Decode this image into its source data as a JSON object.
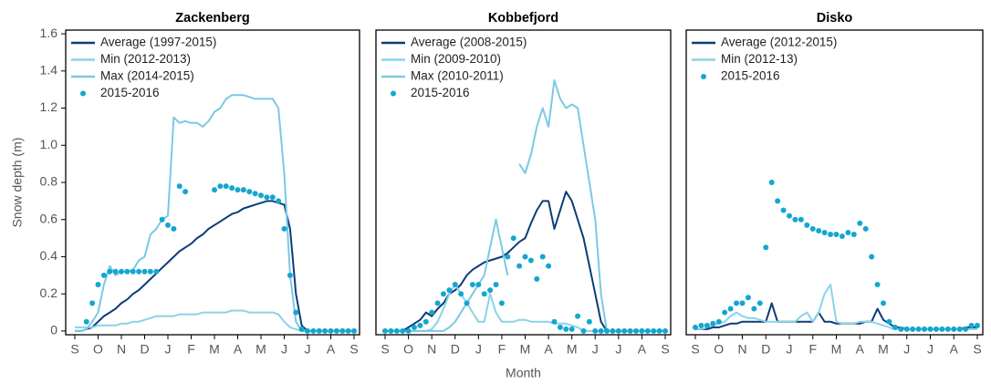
{
  "chart_data": [
    {
      "type": "line",
      "title": "Zackenberg",
      "ylabel": "Snow depth (m)",
      "x": [
        0,
        0.25,
        0.5,
        0.75,
        1,
        1.25,
        1.5,
        1.75,
        2,
        2.25,
        2.5,
        2.75,
        3,
        3.25,
        3.5,
        3.75,
        4,
        4.25,
        4.5,
        4.75,
        5,
        5.25,
        5.5,
        5.75,
        6,
        6.25,
        6.5,
        6.75,
        7,
        7.25,
        7.5,
        7.75,
        8,
        8.25,
        8.5,
        8.75,
        9,
        9.25,
        9.5,
        9.75,
        10,
        10.25,
        10.5,
        10.75,
        11,
        11.25,
        11.5,
        11.75,
        12
      ],
      "xlim": [
        0,
        12
      ],
      "xticks": [
        {
          "value": 0,
          "label": "S"
        },
        {
          "value": 1,
          "label": "O"
        },
        {
          "value": 2,
          "label": "N"
        },
        {
          "value": 3,
          "label": "D"
        },
        {
          "value": 4,
          "label": "J"
        },
        {
          "value": 5,
          "label": "F"
        },
        {
          "value": 6,
          "label": "M"
        },
        {
          "value": 7,
          "label": "A"
        },
        {
          "value": 8,
          "label": "M"
        },
        {
          "value": 9,
          "label": "J"
        },
        {
          "value": 10,
          "label": "J"
        },
        {
          "value": 11,
          "label": "A"
        },
        {
          "value": 12,
          "label": "S"
        }
      ],
      "ylim": [
        -0.02,
        1.62
      ],
      "yticks": [
        0,
        0.2,
        0.4,
        0.6,
        0.8,
        {
          "value": 1,
          "label": "1.0"
        },
        1.2,
        1.4,
        1.6
      ],
      "series": [
        {
          "name": "Average (1997-2015)",
          "color": "#0b3c78",
          "values": [
            0,
            0,
            0.01,
            0.02,
            0.05,
            0.08,
            0.1,
            0.12,
            0.15,
            0.17,
            0.2,
            0.22,
            0.25,
            0.28,
            0.31,
            0.34,
            0.37,
            0.4,
            0.43,
            0.45,
            0.47,
            0.5,
            0.52,
            0.55,
            0.57,
            0.59,
            0.61,
            0.63,
            0.64,
            0.66,
            0.67,
            0.68,
            0.69,
            0.7,
            0.7,
            0.69,
            0.68,
            0.55,
            0.2,
            0.03,
            0,
            0,
            0,
            0,
            0,
            0,
            0,
            0,
            0
          ]
        },
        {
          "name": "Min (2012-2013)",
          "color": "#8ad3e8",
          "values": [
            0.02,
            0.02,
            0.02,
            0.02,
            0.03,
            0.03,
            0.03,
            0.03,
            0.04,
            0.04,
            0.05,
            0.05,
            0.06,
            0.07,
            0.08,
            0.08,
            0.08,
            0.08,
            0.09,
            0.09,
            0.09,
            0.09,
            0.1,
            0.1,
            0.1,
            0.1,
            0.1,
            0.11,
            0.11,
            0.11,
            0.1,
            0.1,
            0.1,
            0.1,
            0.1,
            0.09,
            0.05,
            0.02,
            0.01,
            0,
            0,
            0,
            0,
            0,
            0,
            0,
            0,
            0,
            0
          ]
        },
        {
          "name": "Max (2014-2015)",
          "color": "#7cc8e4",
          "values": [
            0,
            0,
            0.01,
            0.05,
            0.1,
            0.25,
            0.35,
            0.3,
            0.32,
            0.32,
            0.33,
            0.38,
            0.4,
            0.52,
            0.55,
            0.6,
            0.62,
            1.15,
            1.12,
            1.13,
            1.12,
            1.12,
            1.1,
            1.13,
            1.18,
            1.2,
            1.25,
            1.27,
            1.27,
            1.27,
            1.26,
            1.25,
            1.25,
            1.25,
            1.25,
            1.2,
            0.85,
            0.3,
            0.05,
            0,
            0,
            0,
            0,
            0,
            0,
            0,
            0,
            0,
            0
          ]
        },
        {
          "name": "2015-2016",
          "color": "#14a6d0",
          "type": "scatter",
          "values": [
            null,
            null,
            0.05,
            0.15,
            0.25,
            0.3,
            0.32,
            0.32,
            0.32,
            0.32,
            0.32,
            0.32,
            0.32,
            0.32,
            0.32,
            0.6,
            0.57,
            0.55,
            0.78,
            0.75,
            null,
            null,
            null,
            null,
            0.76,
            0.78,
            0.78,
            0.77,
            0.76,
            0.76,
            0.75,
            0.74,
            0.73,
            0.72,
            0.72,
            0.7,
            0.55,
            0.3,
            0.1,
            0.01,
            0,
            0,
            0,
            0,
            0,
            0,
            0,
            0,
            0
          ]
        }
      ]
    },
    {
      "type": "line",
      "title": "Kobbefjord",
      "xlabel": "Month",
      "x": [
        0,
        0.25,
        0.5,
        0.75,
        1,
        1.25,
        1.5,
        1.75,
        2,
        2.25,
        2.5,
        2.75,
        3,
        3.25,
        3.5,
        3.75,
        4,
        4.25,
        4.5,
        4.75,
        5,
        5.25,
        5.5,
        5.75,
        6,
        6.25,
        6.5,
        6.75,
        7,
        7.25,
        7.5,
        7.75,
        8,
        8.25,
        8.5,
        8.75,
        9,
        9.25,
        9.5,
        9.75,
        10,
        10.25,
        10.5,
        10.75,
        11,
        11.25,
        11.5,
        11.75,
        12
      ],
      "xlim": [
        0,
        12
      ],
      "xticks": [
        {
          "value": 0,
          "label": "S"
        },
        {
          "value": 1,
          "label": "O"
        },
        {
          "value": 2,
          "label": "N"
        },
        {
          "value": 3,
          "label": "D"
        },
        {
          "value": 4,
          "label": "J"
        },
        {
          "value": 5,
          "label": "F"
        },
        {
          "value": 6,
          "label": "M"
        },
        {
          "value": 7,
          "label": "A"
        },
        {
          "value": 8,
          "label": "M"
        },
        {
          "value": 9,
          "label": "J"
        },
        {
          "value": 10,
          "label": "J"
        },
        {
          "value": 11,
          "label": "A"
        },
        {
          "value": 12,
          "label": "S"
        }
      ],
      "ylim": [
        -0.02,
        1.62
      ],
      "series": [
        {
          "name": "Average (2008-2015)",
          "color": "#0b3c78",
          "values": [
            0,
            0,
            0,
            0,
            0.02,
            0.04,
            0.06,
            0.1,
            0.08,
            0.12,
            0.15,
            0.2,
            0.22,
            0.25,
            0.3,
            0.33,
            0.35,
            0.37,
            0.38,
            0.39,
            0.4,
            0.42,
            0.45,
            0.48,
            0.5,
            0.58,
            0.65,
            0.7,
            0.7,
            0.55,
            0.65,
            0.75,
            0.7,
            0.6,
            0.5,
            0.35,
            0.2,
            0.05,
            0,
            0,
            0,
            0,
            0,
            0,
            0,
            0,
            0,
            0,
            0
          ]
        },
        {
          "name": "Min (2009-2010)",
          "color": "#8ad3e8",
          "values": [
            0,
            0,
            0,
            0,
            0,
            0,
            0,
            0,
            0.01,
            0.05,
            0.12,
            0.2,
            0.25,
            0.2,
            0.15,
            0.1,
            0.05,
            0.05,
            0.2,
            0.1,
            0.05,
            0.05,
            0.05,
            0.06,
            0.06,
            0.05,
            0.05,
            0.05,
            0.05,
            0.04,
            0.04,
            0.04,
            0.03,
            0.02,
            0,
            0,
            0,
            0,
            0,
            0,
            0,
            0,
            0,
            0,
            0,
            0,
            0,
            0,
            0
          ]
        },
        {
          "name": "Max (2010-2011)",
          "color": "#7cc8e4",
          "values": [
            0,
            0,
            0,
            0,
            0,
            0,
            0,
            0,
            0,
            0,
            0,
            0.02,
            0.05,
            0.1,
            0.15,
            0.2,
            0.25,
            0.3,
            0.45,
            0.6,
            0.45,
            0.3,
            null,
            0.9,
            0.85,
            0.95,
            1.1,
            1.2,
            1.1,
            1.35,
            1.25,
            1.2,
            1.22,
            1.2,
            1.0,
            0.8,
            0.6,
            0.2,
            0,
            0,
            0,
            0,
            0,
            0,
            0,
            0,
            0,
            0,
            0
          ]
        },
        {
          "name": "2015-2016",
          "color": "#14a6d0",
          "type": "scatter",
          "values": [
            0,
            0,
            0,
            0,
            0,
            0.02,
            0.03,
            0.05,
            0.1,
            0.15,
            0.2,
            0.22,
            0.25,
            0.2,
            0.15,
            0.25,
            0.25,
            0.2,
            0.22,
            0.25,
            0.15,
            0.4,
            0.5,
            0.35,
            0.4,
            0.38,
            0.28,
            0.4,
            0.35,
            0.05,
            0.02,
            0.01,
            0.01,
            0.08,
            0,
            0.05,
            0,
            0,
            0,
            0,
            0,
            0,
            0,
            0,
            0,
            0,
            0,
            0,
            0
          ]
        }
      ]
    },
    {
      "type": "line",
      "title": "Disko",
      "x": [
        0,
        0.25,
        0.5,
        0.75,
        1,
        1.25,
        1.5,
        1.75,
        2,
        2.25,
        2.5,
        2.75,
        3,
        3.25,
        3.5,
        3.75,
        4,
        4.25,
        4.5,
        4.75,
        5,
        5.25,
        5.5,
        5.75,
        6,
        6.25,
        6.5,
        6.75,
        7,
        7.25,
        7.5,
        7.75,
        8,
        8.25,
        8.5,
        8.75,
        9,
        9.25,
        9.5,
        9.75,
        10,
        10.25,
        10.5,
        10.75,
        11,
        11.25,
        11.5,
        11.75,
        12
      ],
      "xlim": [
        0,
        12
      ],
      "xticks": [
        {
          "value": 0,
          "label": "S"
        },
        {
          "value": 1,
          "label": "O"
        },
        {
          "value": 2,
          "label": "N"
        },
        {
          "value": 3,
          "label": "D"
        },
        {
          "value": 4,
          "label": "J"
        },
        {
          "value": 5,
          "label": "F"
        },
        {
          "value": 6,
          "label": "M"
        },
        {
          "value": 7,
          "label": "A"
        },
        {
          "value": 8,
          "label": "M"
        },
        {
          "value": 9,
          "label": "J"
        },
        {
          "value": 10,
          "label": "J"
        },
        {
          "value": 11,
          "label": "A"
        },
        {
          "value": 12,
          "label": "S"
        }
      ],
      "ylim": [
        -0.02,
        1.62
      ],
      "series": [
        {
          "name": "Average (2012-2015)",
          "color": "#0b3c78",
          "values": [
            0.01,
            0.01,
            0.01,
            0.02,
            0.02,
            0.03,
            0.04,
            0.04,
            0.05,
            0.05,
            0.05,
            0.05,
            0.05,
            0.15,
            0.05,
            0.05,
            0.05,
            0.05,
            0.05,
            0.05,
            0.05,
            0.1,
            0.05,
            0.05,
            0.04,
            0.04,
            0.04,
            0.04,
            0.04,
            0.05,
            0.05,
            0.12,
            0.06,
            0.04,
            0.02,
            0.02,
            0.01,
            0.01,
            0.01,
            0.01,
            0.01,
            0.01,
            0.01,
            0.01,
            0.01,
            0.01,
            0.02,
            0.02,
            0.02
          ]
        },
        {
          "name": "Min (2012-13)",
          "color": "#8ad3e8",
          "values": [
            0.01,
            0.01,
            0.02,
            0.03,
            0.04,
            0.05,
            0.08,
            0.1,
            0.08,
            0.07,
            0.07,
            0.06,
            0.05,
            0.05,
            0.05,
            0.05,
            0.05,
            0.05,
            0.08,
            0.1,
            0.05,
            0.1,
            0.2,
            0.25,
            0.05,
            0.04,
            0.04,
            0.04,
            0.05,
            0.05,
            0.05,
            0.04,
            0.03,
            0.02,
            0.01,
            0.01,
            0.01,
            0.01,
            0.01,
            0.01,
            0.01,
            0.01,
            0.01,
            0.01,
            0.01,
            0.01,
            0.01,
            0.01,
            0.01
          ]
        },
        {
          "name": "2015-2016",
          "color": "#14a6d0",
          "type": "scatter",
          "values": [
            0.02,
            0.03,
            0.03,
            0.04,
            0.05,
            0.1,
            0.12,
            0.15,
            0.15,
            0.18,
            0.12,
            0.15,
            0.45,
            0.8,
            0.7,
            0.65,
            0.62,
            0.6,
            0.6,
            0.57,
            0.55,
            0.54,
            0.53,
            0.52,
            0.52,
            0.51,
            0.53,
            0.52,
            0.58,
            0.55,
            0.4,
            0.25,
            0.15,
            0.05,
            0.02,
            0.01,
            0.01,
            0.01,
            0.01,
            0.01,
            0.01,
            0.01,
            0.01,
            0.01,
            0.01,
            0.01,
            0.01,
            0.03,
            0.03
          ]
        }
      ]
    }
  ]
}
